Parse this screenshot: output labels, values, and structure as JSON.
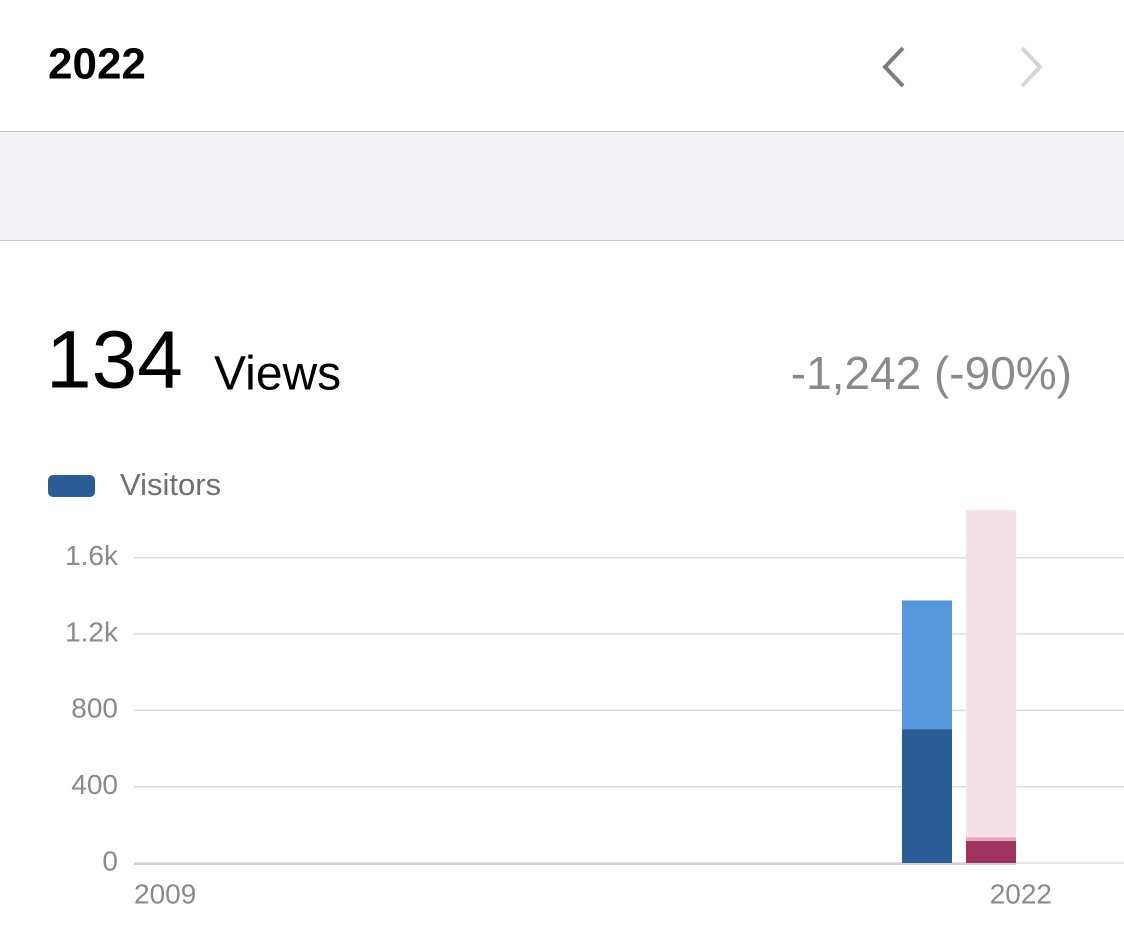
{
  "header": {
    "title": "2022"
  },
  "summary": {
    "value": 134,
    "label": "Views",
    "change": "-1,242 (-90%)"
  },
  "chart_data": {
    "type": "bar",
    "categories": [
      "2009",
      null,
      null,
      null,
      null,
      null,
      null,
      null,
      null,
      null,
      null,
      null,
      null,
      "2022"
    ],
    "series": [
      {
        "color": "#5599dc",
        "highlight_color": "#e8a6bd",
        "values": [
          0,
          0,
          0,
          0,
          0,
          0,
          0,
          0,
          0,
          0,
          0,
          0,
          1376,
          134
        ]
      },
      {
        "name": "Visitors",
        "color": "#2a5d96",
        "highlight_color": "#a0345e",
        "values": [
          0,
          0,
          0,
          0,
          0,
          0,
          0,
          0,
          0,
          0,
          0,
          0,
          700,
          115
        ]
      }
    ],
    "highlight_category": 13,
    "highlight_background": "#f5e0e8",
    "ylim": [
      0,
      1850
    ],
    "yticks": [
      0,
      400,
      800,
      {
        "value": 1200,
        "label": "1.2k"
      },
      {
        "value": 1600,
        "label": "1.6k"
      }
    ],
    "grid": true
  }
}
